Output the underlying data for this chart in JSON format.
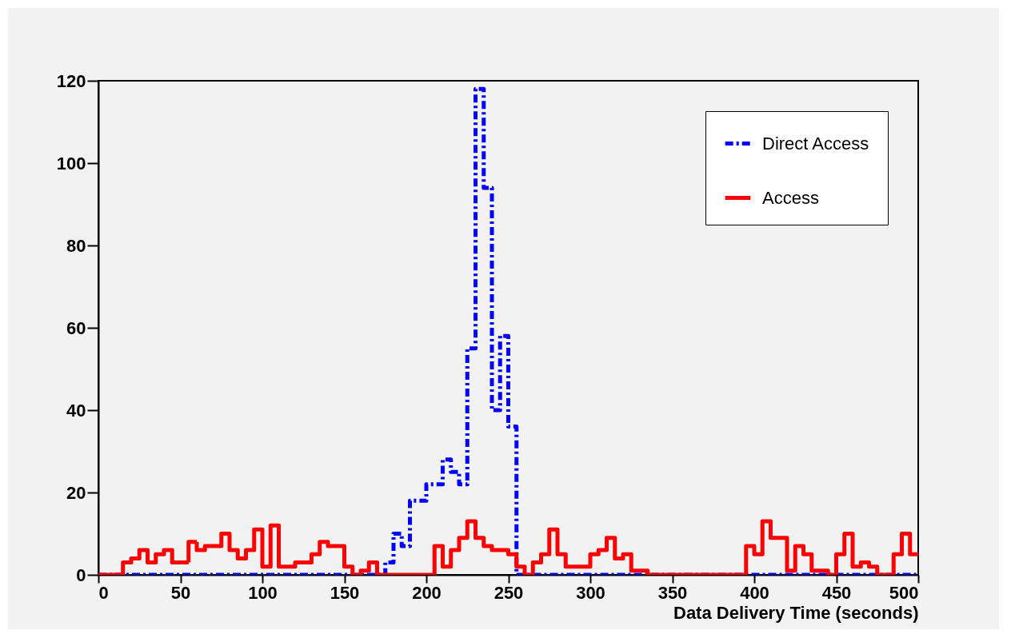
{
  "chart_data": {
    "type": "histogram",
    "xlabel": "Data Delivery Time (seconds)",
    "bins": [
      0,
      5,
      10,
      15,
      20,
      25,
      30,
      35,
      40,
      45,
      50,
      55,
      60,
      65,
      70,
      75,
      80,
      85,
      90,
      95,
      100,
      105,
      110,
      115,
      120,
      125,
      130,
      135,
      140,
      145,
      150,
      155,
      160,
      165,
      170,
      175,
      180,
      185,
      190,
      195,
      200,
      205,
      210,
      215,
      220,
      225,
      230,
      235,
      240,
      245,
      250,
      255,
      260,
      265,
      270,
      275,
      280,
      285,
      290,
      295,
      300,
      305,
      310,
      315,
      320,
      325,
      330,
      335,
      340,
      345,
      350,
      355,
      360,
      365,
      370,
      375,
      380,
      385,
      390,
      395,
      400,
      405,
      410,
      415,
      420,
      425,
      430,
      435,
      440,
      445,
      450,
      455,
      460,
      465,
      470,
      475,
      480,
      485,
      490,
      495,
      500
    ],
    "series": [
      {
        "name": "Direct Access",
        "color": "#0000ff",
        "line_style": "dashdot",
        "values": [
          0,
          0,
          0,
          0,
          0,
          0,
          0,
          0,
          0,
          0,
          0,
          0,
          0,
          0,
          0,
          0,
          0,
          0,
          0,
          0,
          0,
          0,
          0,
          0,
          0,
          0,
          0,
          0,
          0,
          0,
          0,
          0,
          0,
          0,
          0,
          3,
          10,
          7,
          18,
          18,
          22,
          22,
          28,
          25,
          22,
          55,
          118,
          94,
          40,
          58,
          36,
          0,
          0,
          0,
          0,
          0,
          0,
          0,
          0,
          0,
          0,
          0,
          0,
          0,
          0,
          0,
          0,
          0,
          0,
          0,
          0,
          0,
          0,
          0,
          0,
          0,
          0,
          0,
          0,
          0,
          0,
          0,
          0,
          0,
          0,
          0,
          0,
          0,
          0,
          0,
          0,
          0,
          0,
          0,
          0,
          0,
          0,
          0,
          0,
          0
        ]
      },
      {
        "name": "Access",
        "color": "#ff0000",
        "line_style": "solid",
        "values": [
          0,
          0,
          0,
          3,
          4,
          6,
          3,
          5,
          6,
          3,
          3,
          8,
          6,
          7,
          7,
          10,
          6,
          4,
          6,
          11,
          2,
          12,
          2,
          2,
          3,
          3,
          5,
          8,
          7,
          7,
          2,
          0,
          1,
          3,
          0,
          0,
          0,
          0,
          0,
          0,
          0,
          7,
          2,
          6,
          9,
          13,
          9,
          7,
          6,
          6,
          5,
          2,
          0,
          3,
          5,
          11,
          5,
          2,
          2,
          2,
          5,
          6,
          9,
          4,
          5,
          1,
          1,
          0,
          0,
          0,
          0,
          0,
          0,
          0,
          0,
          0,
          0,
          0,
          0,
          7,
          5,
          13,
          9,
          9,
          1,
          7,
          5,
          1,
          1,
          0,
          5,
          10,
          2,
          3,
          2,
          0,
          0,
          5,
          10,
          5
        ]
      }
    ],
    "xlim": [
      0,
      500
    ],
    "xticks": [
      0,
      50,
      100,
      150,
      200,
      250,
      300,
      350,
      400,
      450,
      500
    ],
    "ylim": [
      0,
      120
    ],
    "yticks": [
      0,
      20,
      40,
      60,
      80,
      100,
      120
    ],
    "legend": "top right"
  }
}
